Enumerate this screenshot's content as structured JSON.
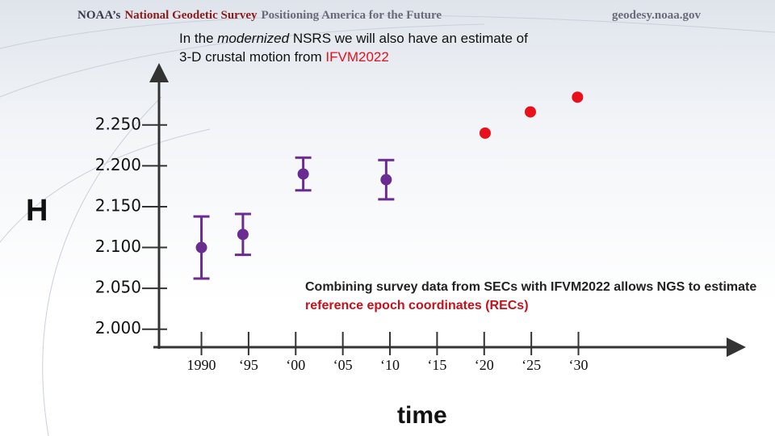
{
  "header": {
    "parts": [
      {
        "text": "NOAA’s",
        "color": "#3a3a4a"
      },
      {
        "text": "National Geodetic Survey",
        "color": "#8b1a1a"
      },
      {
        "text": "Positioning America for the Future",
        "color": "#6b6b78"
      }
    ],
    "url": "geodesy.noaa.gov"
  },
  "chart_data": {
    "type": "scatter",
    "title_lines": [
      [
        {
          "text": "In the "
        },
        {
          "text": "modernized",
          "style": "italic"
        },
        {
          "text": " NSRS we will also have an estimate of"
        }
      ],
      [
        {
          "text": "3-D crustal motion from "
        },
        {
          "text": "IFVM2022",
          "color": "#e8101a"
        }
      ]
    ],
    "annotation": [
      {
        "text": "Combining survey data from SECs with IFVM2022 allows NGS to estimate "
      },
      {
        "text": "reference epoch coordinates (RECs)",
        "color": "#c8101a"
      }
    ],
    "ylabel": "H",
    "xlabel": "time",
    "xlim": [
      1985.5,
      2047
    ],
    "ylim": [
      1.978,
      2.314
    ],
    "xticks": [
      {
        "value": 1990,
        "label": "1990"
      },
      {
        "value": 1995,
        "label": "‘95"
      },
      {
        "value": 2000,
        "label": "‘00"
      },
      {
        "value": 2005,
        "label": "‘05"
      },
      {
        "value": 2010,
        "label": "‘10"
      },
      {
        "value": 2015,
        "label": "‘15"
      },
      {
        "value": 2020,
        "label": "‘20"
      },
      {
        "value": 2025,
        "label": "‘25"
      },
      {
        "value": 2030,
        "label": "‘30"
      }
    ],
    "yticks": [
      {
        "value": 2,
        "label": "2.000"
      },
      {
        "value": 2.05,
        "label": "2.050"
      },
      {
        "value": 2.1,
        "label": "2.100"
      },
      {
        "value": 2.15,
        "label": "2.150"
      },
      {
        "value": 2.2,
        "label": "2.200"
      },
      {
        "value": 2.25,
        "label": "2.250"
      }
    ],
    "series": [
      {
        "color": "#6a2c91",
        "x": [
          1990,
          1994.4,
          2000.8,
          2009.6
        ],
        "values": [
          2.1,
          2.116,
          2.19,
          2.183
        ],
        "errors": [
          0.038,
          0.025,
          0.02,
          0.024
        ]
      },
      {
        "color": "#e8101a",
        "x": [
          2020.1,
          2024.9,
          2029.9
        ],
        "values": [
          2.24,
          2.266,
          2.284
        ]
      }
    ]
  }
}
